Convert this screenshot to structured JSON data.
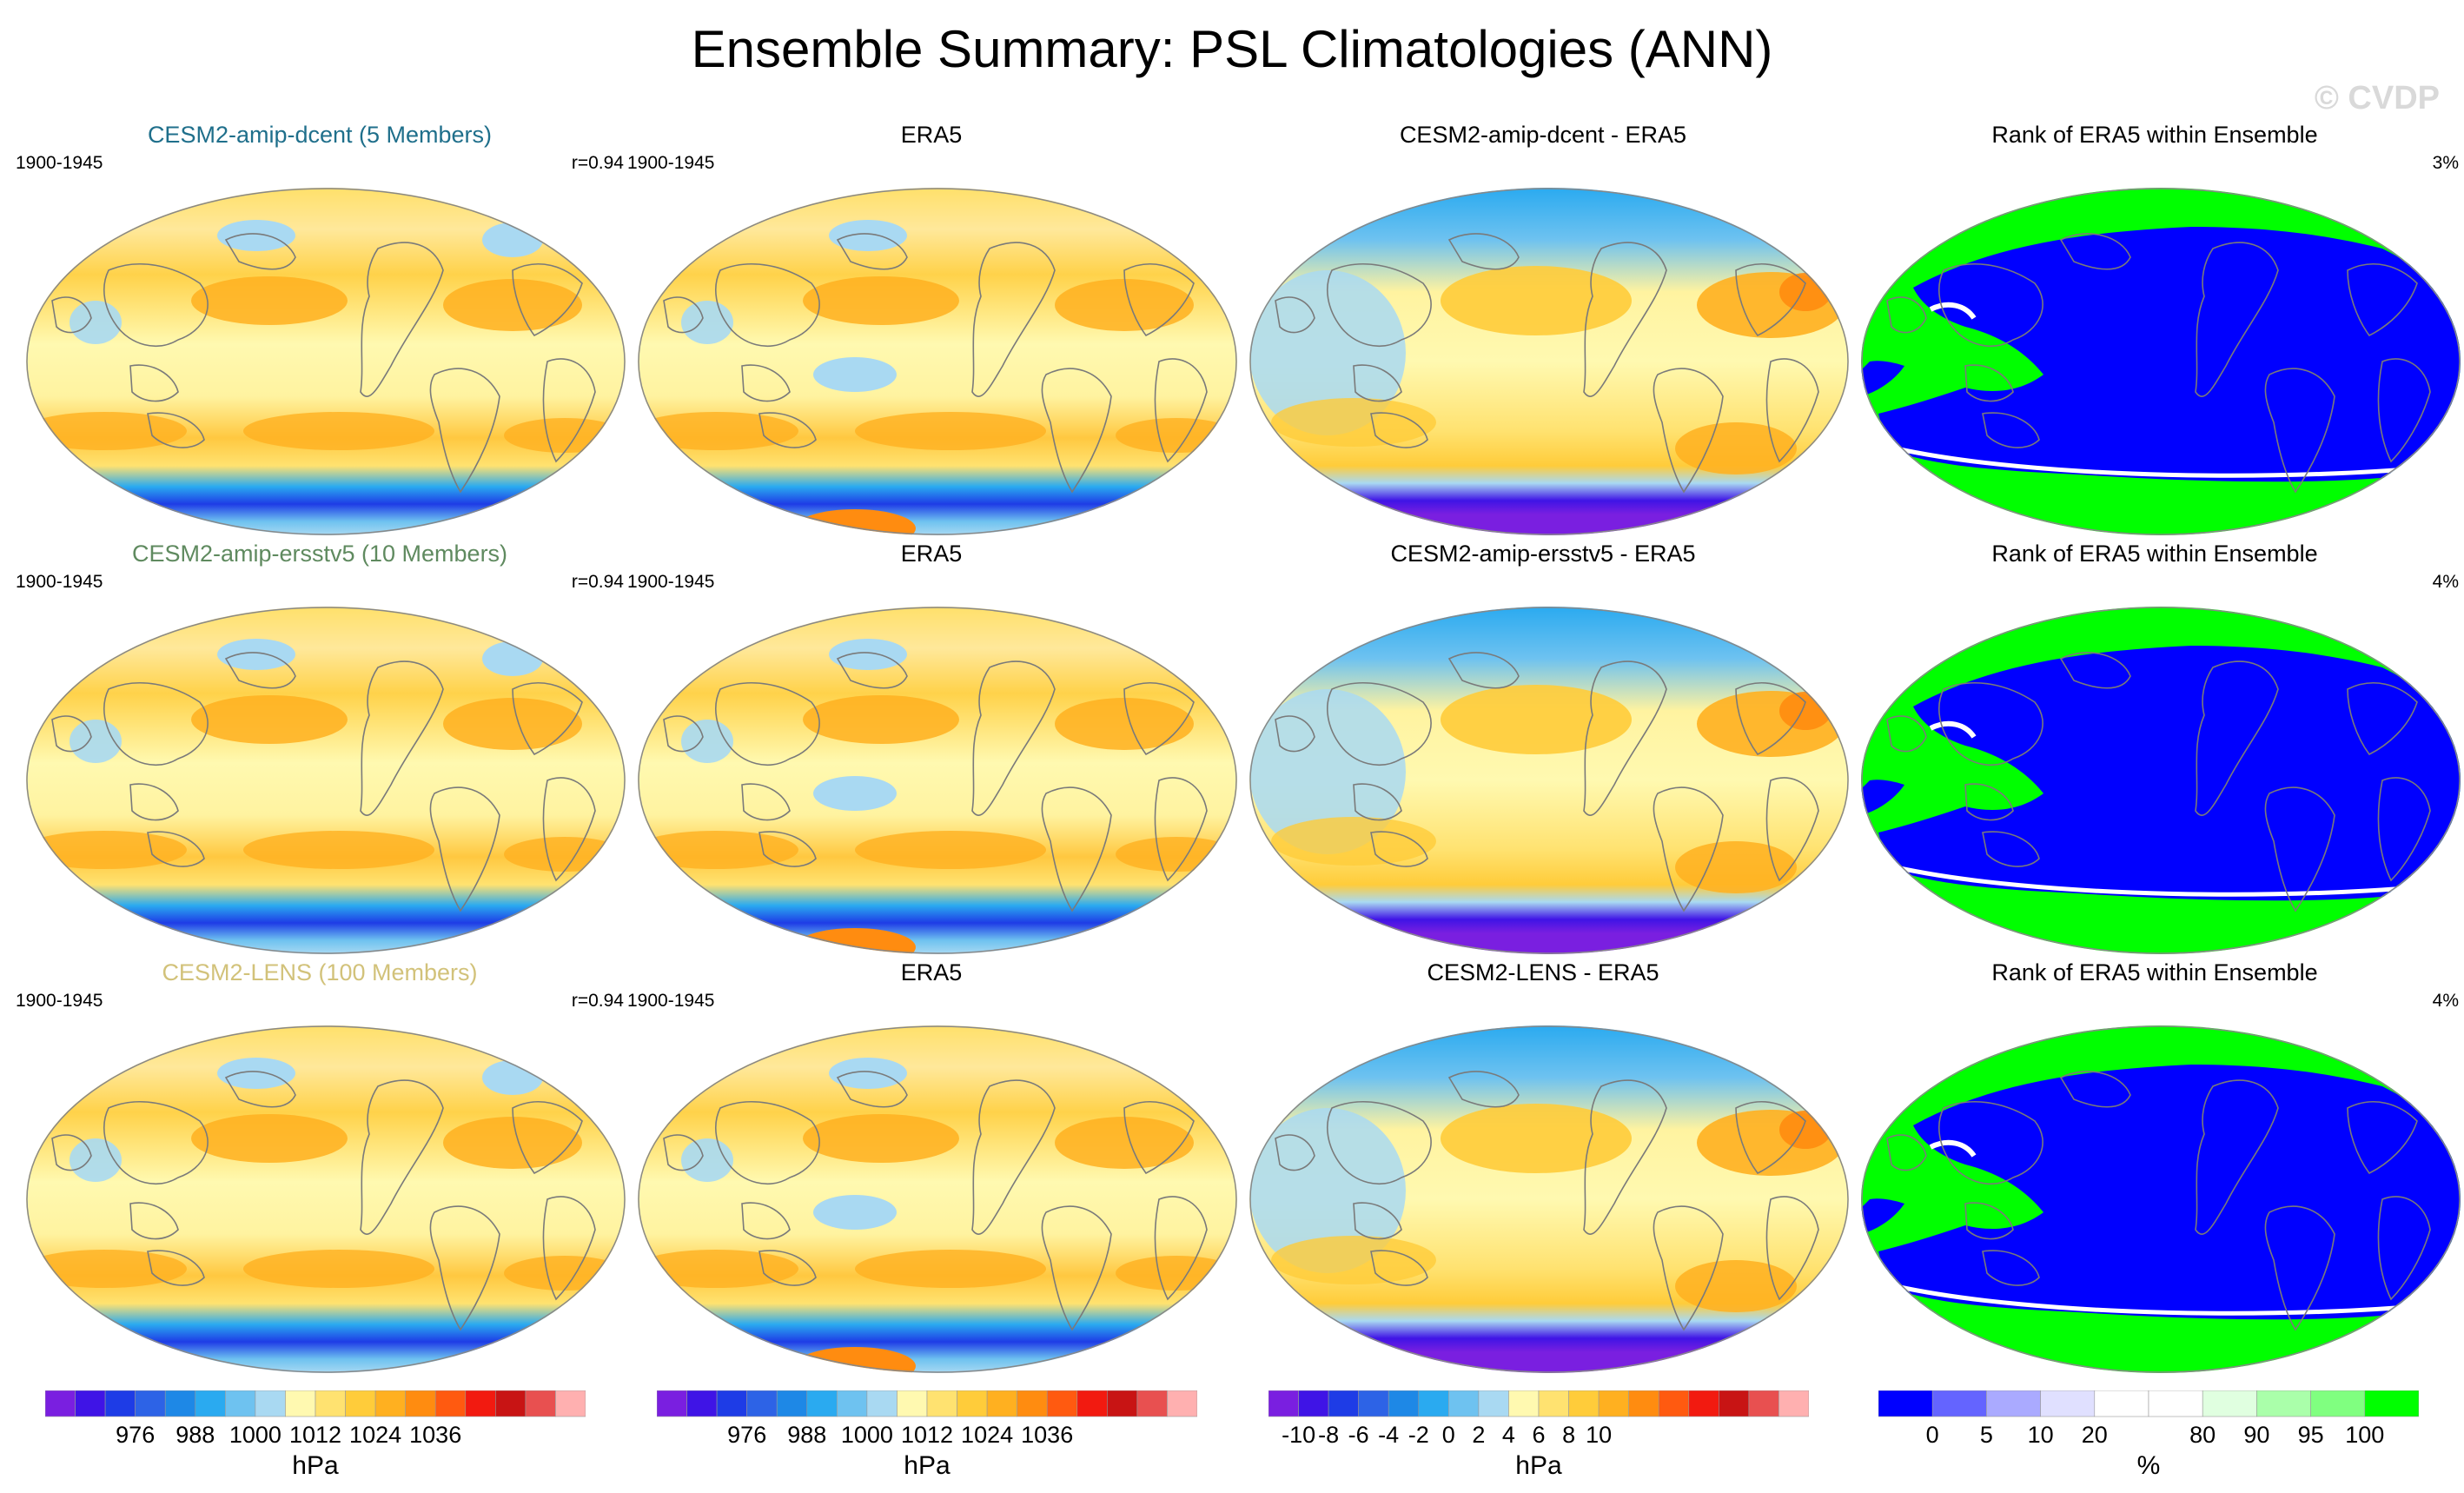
{
  "title": "Ensemble Summary: PSL Climatologies (ANN)",
  "watermark": "© CVDP",
  "rows": [
    {
      "model": {
        "title": "CESM2-amip-dcent (5 Members)",
        "title_color": "#1f6f8b",
        "years": "1900-1945",
        "corr": "r=0.94"
      },
      "obs": {
        "title": "ERA5",
        "years": "1900-1945"
      },
      "diff": {
        "title": "CESM2-amip-dcent - ERA5"
      },
      "rank": {
        "title": "Rank of ERA5 within Ensemble",
        "percent": "3%"
      }
    },
    {
      "model": {
        "title": "CESM2-amip-ersstv5 (10 Members)",
        "title_color": "#5f8a5f",
        "years": "1900-1945",
        "corr": "r=0.94"
      },
      "obs": {
        "title": "ERA5",
        "years": "1900-1945"
      },
      "diff": {
        "title": "CESM2-amip-ersstv5 - ERA5"
      },
      "rank": {
        "title": "Rank of ERA5 within Ensemble",
        "percent": "4%"
      }
    },
    {
      "model": {
        "title": "CESM2-LENS (100 Members)",
        "title_color": "#d2c27a",
        "years": "1900-1945",
        "corr": "r=0.94"
      },
      "obs": {
        "title": "ERA5",
        "years": "1900-1945"
      },
      "diff": {
        "title": "CESM2-LENS - ERA5"
      },
      "rank": {
        "title": "Rank of ERA5 within Ensemble",
        "percent": "4%"
      }
    }
  ],
  "colorbars": [
    {
      "unit": "hPa",
      "colors": [
        "#7a1fe0",
        "#3f14e6",
        "#1e3ce6",
        "#2d63e6",
        "#1e88e6",
        "#2aaaf0",
        "#6ec2f0",
        "#a9d9f2",
        "#fff9b0",
        "#ffe270",
        "#ffcc3a",
        "#ffb020",
        "#ff8c10",
        "#ff5a10",
        "#f21a10",
        "#c81414",
        "#e85050",
        "#ffb0b0"
      ],
      "ticks": [
        "976",
        "988",
        "1000",
        "1012",
        "1024",
        "1036"
      ],
      "tick_boundaries": [
        3,
        5,
        7,
        9,
        11,
        13
      ]
    },
    {
      "unit": "hPa",
      "colors": [
        "#7a1fe0",
        "#3f14e6",
        "#1e3ce6",
        "#2d63e6",
        "#1e88e6",
        "#2aaaf0",
        "#6ec2f0",
        "#a9d9f2",
        "#fff9b0",
        "#ffe270",
        "#ffcc3a",
        "#ffb020",
        "#ff8c10",
        "#ff5a10",
        "#f21a10",
        "#c81414",
        "#e85050",
        "#ffb0b0"
      ],
      "ticks": [
        "976",
        "988",
        "1000",
        "1012",
        "1024",
        "1036"
      ],
      "tick_boundaries": [
        3,
        5,
        7,
        9,
        11,
        13
      ]
    },
    {
      "unit": "hPa",
      "colors": [
        "#7a1fe0",
        "#3f14e6",
        "#1e3ce6",
        "#2d63e6",
        "#1e88e6",
        "#2aaaf0",
        "#6ec2f0",
        "#a9d9f2",
        "#fff9b0",
        "#ffe270",
        "#ffcc3a",
        "#ffb020",
        "#ff8c10",
        "#ff5a10",
        "#f21a10",
        "#c81414",
        "#e85050",
        "#ffb0b0"
      ],
      "ticks": [
        "-10",
        "-8",
        "-6",
        "-4",
        "-2",
        "0",
        "2",
        "4",
        "6",
        "8",
        "10"
      ],
      "tick_boundaries": [
        1,
        2,
        3,
        4,
        5,
        6,
        7,
        8,
        9,
        10,
        11
      ]
    },
    {
      "unit": "%",
      "colors": [
        "#0000ff",
        "#6464ff",
        "#aaaaff",
        "#e0e0ff",
        "#ffffff",
        "#ffffff",
        "#e0ffe0",
        "#aaffaa",
        "#80ff80",
        "#00ff00"
      ],
      "ticks": [
        "0",
        "5",
        "10",
        "20",
        "80",
        "90",
        "95",
        "100"
      ],
      "tick_boundaries": [
        1,
        2,
        3,
        4,
        6,
        7,
        8,
        9
      ]
    }
  ]
}
